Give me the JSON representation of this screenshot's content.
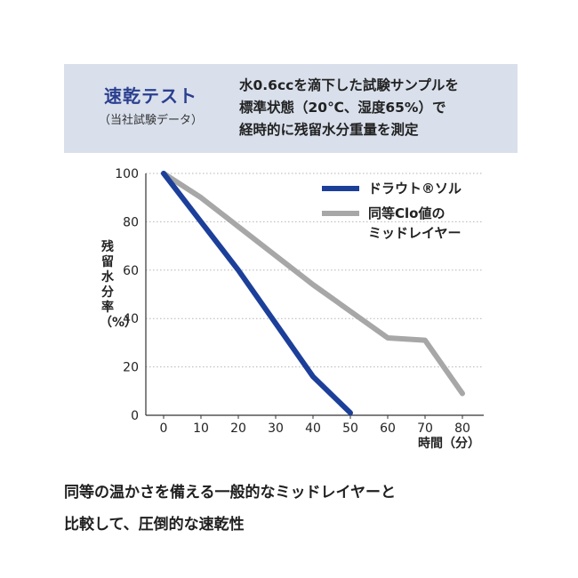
{
  "header": {
    "title": "速乾テスト",
    "subtitle": "（当社試験データ）",
    "description": "水0.6ccを滴下した試験サンプルを\n標準状態（20℃、湿度65%）で\n経時的に残留水分重量を測定"
  },
  "chart_data": {
    "type": "line",
    "ylabel": "残留水分率（%）",
    "xlabel": "時間（分）",
    "xlim": [
      0,
      80
    ],
    "ylim": [
      0,
      100
    ],
    "xticks": [
      "0",
      "10",
      "20",
      "30",
      "40",
      "50",
      "60",
      "70",
      "80"
    ],
    "yticks": [
      "0",
      "20",
      "40",
      "60",
      "80",
      "100"
    ],
    "grid": "horizontal dotted",
    "legend_position": "top-right",
    "series": [
      {
        "name": "ドラウト®ソル",
        "color": "#1c3f9a",
        "points": [
          [
            0,
            100
          ],
          [
            10,
            80
          ],
          [
            20,
            60
          ],
          [
            30,
            38
          ],
          [
            40,
            16
          ],
          [
            50,
            1
          ]
        ]
      },
      {
        "name": "同等Clo値のミッドレイヤー",
        "name_lines": [
          "同等Clo値の",
          "ミッドレイヤー"
        ],
        "color": "#a7a7a7",
        "points": [
          [
            0,
            100
          ],
          [
            10,
            90
          ],
          [
            20,
            78
          ],
          [
            30,
            66
          ],
          [
            40,
            54
          ],
          [
            50,
            43
          ],
          [
            60,
            32
          ],
          [
            70,
            31
          ],
          [
            80,
            9
          ]
        ]
      }
    ]
  },
  "caption": {
    "text": "同等の温かさを備える一般的なミッドレイヤーと\n比較して、圧倒的な速乾性"
  }
}
